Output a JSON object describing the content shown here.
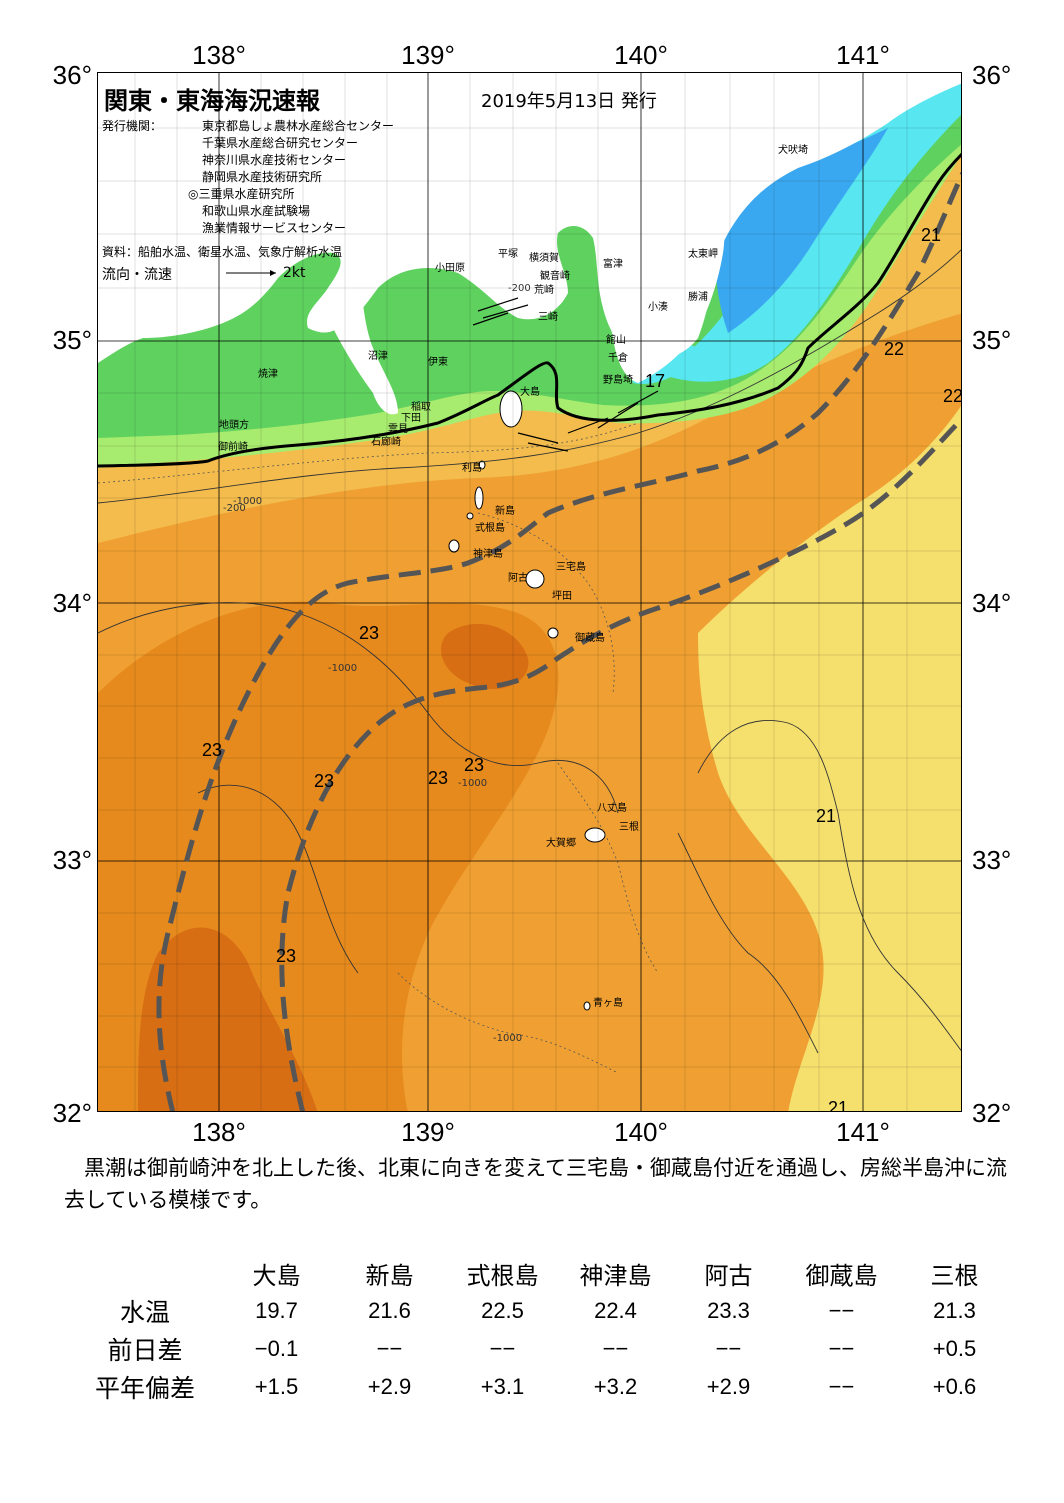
{
  "axes": {
    "lon_labels": [
      "138°",
      "139°",
      "140°",
      "141°"
    ],
    "lat_labels": [
      "36°",
      "35°",
      "34°",
      "33°",
      "32°"
    ]
  },
  "header": {
    "title": "関東・東海海況速報",
    "date": "2019年5月13日 発行",
    "issuer_label": "発行機関：",
    "issuers": [
      "東京都島しょ農林水産総合センター",
      "千葉県水産総合研究センター",
      "神奈川県水産技術センター",
      "静岡県水産技術研究所",
      "◎三重県水産研究所",
      "和歌山県水産試験場",
      "漁業情報サービスセンター"
    ],
    "source": "資料：船舶水温、衛星水温、気象庁解析水温",
    "current_label": "流向・流速",
    "current_scale": "2kt"
  },
  "place_names": [
    "犬吠埼",
    "富津",
    "太東岬",
    "勝浦",
    "小湊",
    "館山",
    "千倉",
    "野島埼",
    "平塚",
    "横須賀",
    "観音崎",
    "荒崎",
    "三崎",
    "小田原",
    "沼津",
    "伊東",
    "焼津",
    "稲取",
    "下田",
    "雲見",
    "石廊崎",
    "地頭方",
    "御前崎",
    "大島",
    "利島",
    "新島",
    "式根島",
    "神津島",
    "三宅島",
    "阿古",
    "坪田",
    "御蔵島",
    "八丈島",
    "三根",
    "大賀郷",
    "青ヶ島"
  ],
  "depth_labels": [
    "-200",
    "-1000"
  ],
  "isotherm_labels": [
    "17",
    "21",
    "22",
    "23"
  ],
  "colors": {
    "coast_green": "#5fd15f",
    "shelf_light_green": "#a8ec6f",
    "cold_blue": "#3aa8f0",
    "cyan": "#58e6f0",
    "yellow": "#f5e06e",
    "light_orange": "#f3bc4c",
    "orange": "#f0a032",
    "deep_orange": "#e68a1e",
    "dark_orange": "#d86e14",
    "kuroshio_axis": "#555555"
  },
  "summary": "黒潮は御前崎沖を北上した後、北東に向きを変えて三宅島・御蔵島付近を通過し、房総半島沖に流去している模様です。",
  "observation_table": {
    "stations": [
      "大島",
      "新島",
      "式根島",
      "神津島",
      "阿古",
      "御蔵島",
      "三根"
    ],
    "rows": [
      {
        "label": "水温",
        "values": [
          "19.7",
          "21.6",
          "22.5",
          "22.4",
          "23.3",
          "−−",
          "21.3"
        ]
      },
      {
        "label": "前日差",
        "values": [
          "−0.1",
          "−−",
          "−−",
          "−−",
          "−−",
          "−−",
          "+0.5"
        ]
      },
      {
        "label": "平年偏差",
        "values": [
          "+1.5",
          "+2.9",
          "+3.1",
          "+3.2",
          "+2.9",
          "−−",
          "+0.6"
        ]
      }
    ]
  }
}
